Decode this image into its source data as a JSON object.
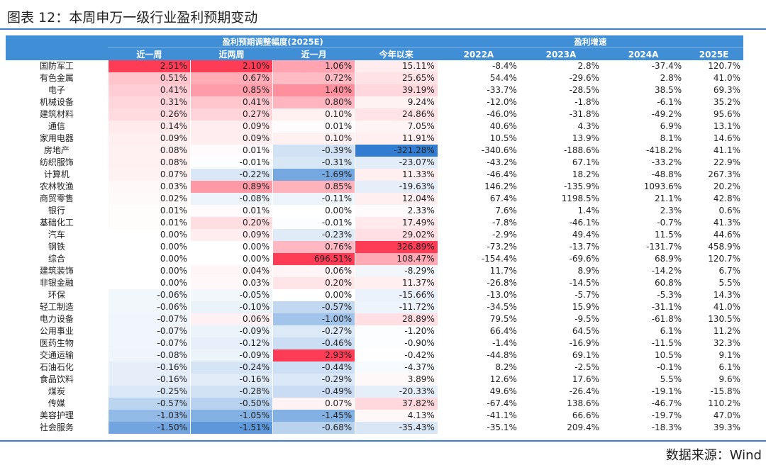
{
  "title": "图表 12：本周申万一级行业盈利预期变动",
  "source": "数据来源：Wind",
  "group_headers": {
    "adjust": "盈利预期调整幅度(2025E)",
    "growth": "盈利增速"
  },
  "columns": [
    "",
    "近一周",
    "近两周",
    "近一月",
    "今年以来",
    "2022A",
    "2023A",
    "2024A",
    "2025E"
  ],
  "colors": {
    "header": "#3f8ed6",
    "positive": "#f03c55",
    "negative": "#2f7bd0"
  },
  "rows": [
    {
      "name": "国防军工",
      "w1": "2.51%",
      "w2": "2.10%",
      "m1": "1.06%",
      "ytd": "15.11%",
      "g22": "-8.4%",
      "g23": "2.8%",
      "g24": "-37.4%",
      "g25": "120.7%",
      "nw1": 2.51,
      "nw2": 2.1,
      "nm1": 1.06,
      "nytd": 15.11
    },
    {
      "name": "有色金属",
      "w1": "0.51%",
      "w2": "0.67%",
      "m1": "0.72%",
      "ytd": "25.65%",
      "g22": "54.4%",
      "g23": "-29.6%",
      "g24": "2.8%",
      "g25": "41.0%",
      "nw1": 0.51,
      "nw2": 0.67,
      "nm1": 0.72,
      "nytd": 25.65
    },
    {
      "name": "电子",
      "w1": "0.41%",
      "w2": "0.85%",
      "m1": "1.40%",
      "ytd": "39.19%",
      "g22": "-33.7%",
      "g23": "-28.5%",
      "g24": "38.5%",
      "g25": "69.3%",
      "nw1": 0.41,
      "nw2": 0.85,
      "nm1": 1.4,
      "nytd": 39.19
    },
    {
      "name": "机械设备",
      "w1": "0.31%",
      "w2": "0.41%",
      "m1": "0.80%",
      "ytd": "9.24%",
      "g22": "-12.0%",
      "g23": "-1.8%",
      "g24": "-6.1%",
      "g25": "35.2%",
      "nw1": 0.31,
      "nw2": 0.41,
      "nm1": 0.8,
      "nytd": 9.24
    },
    {
      "name": "建筑材料",
      "w1": "0.26%",
      "w2": "0.27%",
      "m1": "0.10%",
      "ytd": "24.86%",
      "g22": "-46.0%",
      "g23": "-31.8%",
      "g24": "-49.2%",
      "g25": "95.6%",
      "nw1": 0.26,
      "nw2": 0.27,
      "nm1": 0.1,
      "nytd": 24.86
    },
    {
      "name": "通信",
      "w1": "0.14%",
      "w2": "0.09%",
      "m1": "0.01%",
      "ytd": "7.05%",
      "g22": "40.6%",
      "g23": "4.3%",
      "g24": "6.9%",
      "g25": "13.1%",
      "nw1": 0.14,
      "nw2": 0.09,
      "nm1": 0.01,
      "nytd": 7.05
    },
    {
      "name": "家用电器",
      "w1": "0.09%",
      "w2": "0.09%",
      "m1": "0.10%",
      "ytd": "11.91%",
      "g22": "10.5%",
      "g23": "13.9%",
      "g24": "8.1%",
      "g25": "14.6%",
      "nw1": 0.09,
      "nw2": 0.09,
      "nm1": 0.1,
      "nytd": 11.91
    },
    {
      "name": "房地产",
      "w1": "0.08%",
      "w2": "0.01%",
      "m1": "-0.39%",
      "ytd": "-321.28%",
      "g22": "-340.6%",
      "g23": "-188.6%",
      "g24": "-418.2%",
      "g25": "41.1%",
      "nw1": 0.08,
      "nw2": 0.01,
      "nm1": -0.39,
      "nytd": -321.28
    },
    {
      "name": "纺织服饰",
      "w1": "0.08%",
      "w2": "-0.01%",
      "m1": "-0.31%",
      "ytd": "-23.07%",
      "g22": "-43.2%",
      "g23": "67.1%",
      "g24": "-33.2%",
      "g25": "22.9%",
      "nw1": 0.08,
      "nw2": -0.01,
      "nm1": -0.31,
      "nytd": -23.07
    },
    {
      "name": "计算机",
      "w1": "0.07%",
      "w2": "-0.22%",
      "m1": "-1.69%",
      "ytd": "11.33%",
      "g22": "-46.4%",
      "g23": "18.2%",
      "g24": "-48.8%",
      "g25": "267.3%",
      "nw1": 0.07,
      "nw2": -0.22,
      "nm1": -1.69,
      "nytd": 11.33
    },
    {
      "name": "农林牧渔",
      "w1": "0.03%",
      "w2": "0.89%",
      "m1": "0.85%",
      "ytd": "-19.63%",
      "g22": "146.2%",
      "g23": "-135.9%",
      "g24": "1093.6%",
      "g25": "20.2%",
      "nw1": 0.03,
      "nw2": 0.89,
      "nm1": 0.85,
      "nytd": -19.63
    },
    {
      "name": "商贸零售",
      "w1": "0.02%",
      "w2": "-0.08%",
      "m1": "-0.11%",
      "ytd": "12.04%",
      "g22": "67.4%",
      "g23": "1198.5%",
      "g24": "21.1%",
      "g25": "42.8%",
      "nw1": 0.02,
      "nw2": -0.08,
      "nm1": -0.11,
      "nytd": 12.04
    },
    {
      "name": "银行",
      "w1": "0.01%",
      "w2": "0.01%",
      "m1": "0.00%",
      "ytd": "2.33%",
      "g22": "7.6%",
      "g23": "1.4%",
      "g24": "2.3%",
      "g25": "0.6%",
      "nw1": 0.01,
      "nw2": 0.01,
      "nm1": 0.0,
      "nytd": 2.33
    },
    {
      "name": "基础化工",
      "w1": "0.01%",
      "w2": "0.20%",
      "m1": "-0.01%",
      "ytd": "17.49%",
      "g22": "-7.8%",
      "g23": "-46.1%",
      "g24": "-0.7%",
      "g25": "41.3%",
      "nw1": 0.01,
      "nw2": 0.2,
      "nm1": -0.01,
      "nytd": 17.49
    },
    {
      "name": "汽车",
      "w1": "0.00%",
      "w2": "0.09%",
      "m1": "-0.23%",
      "ytd": "29.02%",
      "g22": "-2.9%",
      "g23": "49.4%",
      "g24": "11.5%",
      "g25": "44.6%",
      "nw1": 0.0,
      "nw2": 0.09,
      "nm1": -0.23,
      "nytd": 29.02
    },
    {
      "name": "钢铁",
      "w1": "0.00%",
      "w2": "0.00%",
      "m1": "0.76%",
      "ytd": "326.89%",
      "g22": "-73.2%",
      "g23": "-13.7%",
      "g24": "-131.7%",
      "g25": "458.9%",
      "nw1": 0.0,
      "nw2": 0.0,
      "nm1": 0.76,
      "nytd": 326.89
    },
    {
      "name": "综合",
      "w1": "0.00%",
      "w2": "0.00%",
      "m1": "696.51%",
      "ytd": "108.47%",
      "g22": "-154.4%",
      "g23": "-69.6%",
      "g24": "68.9%",
      "g25": "120.7%",
      "nw1": 0.0,
      "nw2": 0.0,
      "nm1": 696.51,
      "nytd": 108.47
    },
    {
      "name": "建筑装饰",
      "w1": "0.00%",
      "w2": "0.04%",
      "m1": "0.06%",
      "ytd": "-8.29%",
      "g22": "11.7%",
      "g23": "8.9%",
      "g24": "-14.2%",
      "g25": "6.7%",
      "nw1": 0.0,
      "nw2": 0.04,
      "nm1": 0.06,
      "nytd": -8.29
    },
    {
      "name": "非银金融",
      "w1": "0.00%",
      "w2": "0.03%",
      "m1": "0.20%",
      "ytd": "11.37%",
      "g22": "-26.8%",
      "g23": "-14.5%",
      "g24": "60.8%",
      "g25": "5.5%",
      "nw1": 0.0,
      "nw2": 0.03,
      "nm1": 0.2,
      "nytd": 11.37
    },
    {
      "name": "环保",
      "w1": "-0.06%",
      "w2": "-0.05%",
      "m1": "0.00%",
      "ytd": "-15.66%",
      "g22": "-13.0%",
      "g23": "-5.7%",
      "g24": "-5.3%",
      "g25": "14.3%",
      "nw1": -0.06,
      "nw2": -0.05,
      "nm1": 0.0,
      "nytd": -15.66
    },
    {
      "name": "轻工制造",
      "w1": "-0.06%",
      "w2": "-0.10%",
      "m1": "-0.57%",
      "ytd": "-11.72%",
      "g22": "-34.5%",
      "g23": "15.9%",
      "g24": "-31.1%",
      "g25": "41.0%",
      "nw1": -0.06,
      "nw2": -0.1,
      "nm1": -0.57,
      "nytd": -11.72
    },
    {
      "name": "电力设备",
      "w1": "-0.07%",
      "w2": "0.06%",
      "m1": "-1.00%",
      "ytd": "28.89%",
      "g22": "79.5%",
      "g23": "-9.5%",
      "g24": "-61.8%",
      "g25": "130.5%",
      "nw1": -0.07,
      "nw2": 0.06,
      "nm1": -1.0,
      "nytd": 28.89
    },
    {
      "name": "公用事业",
      "w1": "-0.07%",
      "w2": "-0.09%",
      "m1": "-0.27%",
      "ytd": "-1.20%",
      "g22": "66.4%",
      "g23": "64.5%",
      "g24": "6.1%",
      "g25": "11.2%",
      "nw1": -0.07,
      "nw2": -0.09,
      "nm1": -0.27,
      "nytd": -1.2
    },
    {
      "name": "医药生物",
      "w1": "-0.07%",
      "w2": "-0.12%",
      "m1": "-0.46%",
      "ytd": "-0.90%",
      "g22": "-1.4%",
      "g23": "-16.9%",
      "g24": "-11.5%",
      "g25": "32.3%",
      "nw1": -0.07,
      "nw2": -0.12,
      "nm1": -0.46,
      "nytd": -0.9
    },
    {
      "name": "交通运输",
      "w1": "-0.08%",
      "w2": "-0.09%",
      "m1": "2.93%",
      "ytd": "-0.42%",
      "g22": "-44.8%",
      "g23": "69.1%",
      "g24": "10.5%",
      "g25": "9.1%",
      "nw1": -0.08,
      "nw2": -0.09,
      "nm1": 2.93,
      "nytd": -0.42
    },
    {
      "name": "石油石化",
      "w1": "-0.16%",
      "w2": "-0.24%",
      "m1": "-0.44%",
      "ytd": "-4.37%",
      "g22": "8.2%",
      "g23": "-2.5%",
      "g24": "-0.1%",
      "g25": "6.1%",
      "nw1": -0.16,
      "nw2": -0.24,
      "nm1": -0.44,
      "nytd": -4.37
    },
    {
      "name": "食品饮料",
      "w1": "-0.16%",
      "w2": "-0.16%",
      "m1": "-0.29%",
      "ytd": "3.89%",
      "g22": "12.6%",
      "g23": "17.6%",
      "g24": "5.5%",
      "g25": "9.6%",
      "nw1": -0.16,
      "nw2": -0.16,
      "nm1": -0.29,
      "nytd": 3.89
    },
    {
      "name": "煤炭",
      "w1": "-0.25%",
      "w2": "-0.28%",
      "m1": "-0.49%",
      "ytd": "-20.33%",
      "g22": "49.6%",
      "g23": "-26.4%",
      "g24": "-19.1%",
      "g25": "-15.8%",
      "nw1": -0.25,
      "nw2": -0.28,
      "nm1": -0.49,
      "nytd": -20.33
    },
    {
      "name": "传媒",
      "w1": "-0.57%",
      "w2": "-0.50%",
      "m1": "0.07%",
      "ytd": "37.82%",
      "g22": "-67.4%",
      "g23": "138.6%",
      "g24": "-46.7%",
      "g25": "110.2%",
      "nw1": -0.57,
      "nw2": -0.5,
      "nm1": 0.07,
      "nytd": 37.82
    },
    {
      "name": "美容护理",
      "w1": "-1.03%",
      "w2": "-1.05%",
      "m1": "-1.45%",
      "ytd": "4.13%",
      "g22": "-41.1%",
      "g23": "66.6%",
      "g24": "-19.7%",
      "g25": "47.0%",
      "nw1": -1.03,
      "nw2": -1.05,
      "nm1": -1.45,
      "nytd": 4.13
    },
    {
      "name": "社会服务",
      "w1": "-1.50%",
      "w2": "-1.51%",
      "m1": "-0.68%",
      "ytd": "-35.43%",
      "g22": "-35.1%",
      "g23": "209.4%",
      "g24": "-18.3%",
      "g25": "39.3%",
      "nw1": -1.5,
      "nw2": -1.51,
      "nm1": -0.68,
      "nytd": -35.43
    }
  ]
}
